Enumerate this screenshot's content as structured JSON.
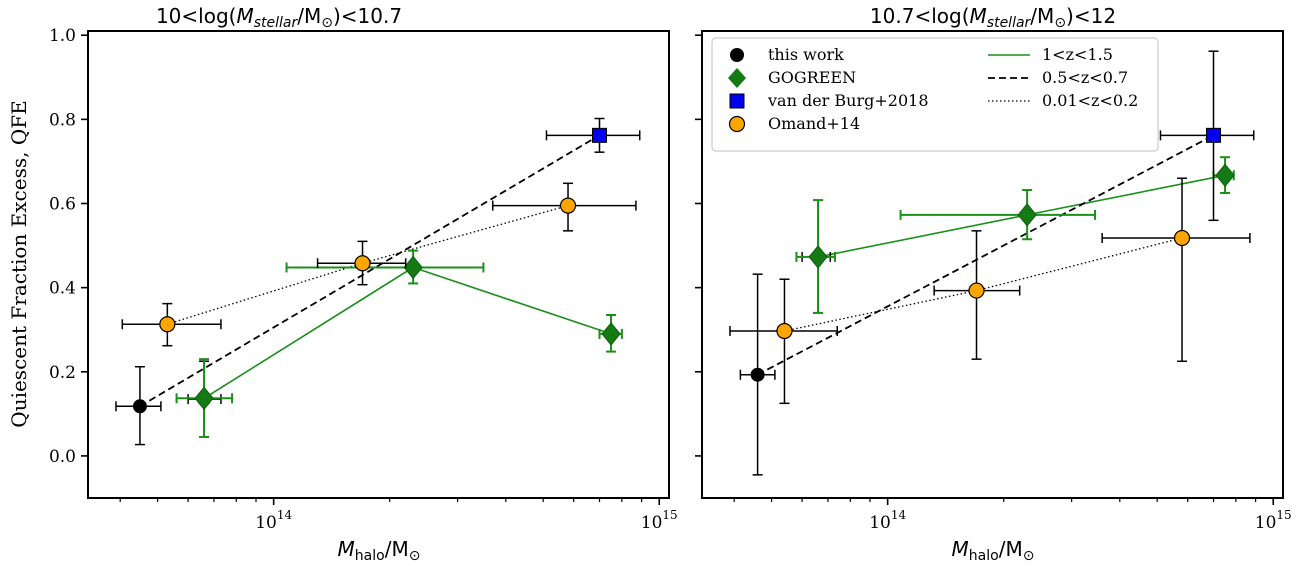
{
  "colors": {
    "this_work": "#000000",
    "gogreen": "#147a14",
    "vdb": "#0000ee",
    "omand": "#ffa500",
    "gogreen_line": "#1a8f1a"
  },
  "chart_data": [
    {
      "type": "scatter",
      "title_pre": "10<log(",
      "title_post": ")<10.7",
      "xlabel": "",
      "ylabel": "Quiescent Fraction Excess, QFE",
      "xscale": "log",
      "xlim": [
        33000000000000.0,
        1060000000000000.0
      ],
      "ylim": [
        -0.1,
        1.01
      ],
      "yticks": [
        "0.0",
        "0.2",
        "0.4",
        "0.6",
        "0.8",
        "1.0"
      ],
      "xticks": [
        {
          "base": "10",
          "exp": "14",
          "value": 100000000000000.0
        },
        {
          "base": "10",
          "exp": "15",
          "value": 1000000000000000.0
        }
      ],
      "series": [
        {
          "key": "this_work",
          "points": [
            {
              "x": 45000000000000.0,
              "y": 0.118,
              "xlo": 39000000000000.0,
              "xhi": 51000000000000.0,
              "ylo": 0.027,
              "yhi": 0.212
            },
            {
              "x": 66000000000000.0,
              "y": 0.135,
              "xlo": 60000000000000.0,
              "xhi": 73000000000000.0,
              "ylo": 0.045,
              "yhi": 0.225
            }
          ]
        },
        {
          "key": "gogreen",
          "points": [
            {
              "x": 66000000000000.0,
              "y": 0.137,
              "xlo": 56000000000000.0,
              "xhi": 78000000000000.0,
              "ylo": 0.045,
              "yhi": 0.23
            },
            {
              "x": 230000000000000.0,
              "y": 0.448,
              "xlo": 108000000000000.0,
              "xhi": 350000000000000.0,
              "ylo": 0.41,
              "yhi": 0.488
            },
            {
              "x": 750000000000000.0,
              "y": 0.29,
              "xlo": 700000000000000.0,
              "xhi": 800000000000000.0,
              "ylo": 0.248,
              "yhi": 0.335
            }
          ]
        },
        {
          "key": "vdb",
          "points": [
            {
              "x": 700000000000000.0,
              "y": 0.762,
              "xlo": 510000000000000.0,
              "xhi": 890000000000000.0,
              "ylo": 0.722,
              "yhi": 0.802
            }
          ]
        },
        {
          "key": "omand",
          "points": [
            {
              "x": 53000000000000.0,
              "y": 0.313,
              "xlo": 40500000000000.0,
              "xhi": 73000000000000.0,
              "ylo": 0.262,
              "yhi": 0.362
            },
            {
              "x": 170000000000000.0,
              "y": 0.458,
              "xlo": 130000000000000.0,
              "xhi": 220000000000000.0,
              "ylo": 0.407,
              "yhi": 0.51
            },
            {
              "x": 580000000000000.0,
              "y": 0.595,
              "xlo": 370000000000000.0,
              "xhi": 870000000000000.0,
              "ylo": 0.535,
              "yhi": 0.648
            }
          ]
        }
      ],
      "lines": [
        {
          "key": "line_hiz",
          "style": "solid",
          "color": "#1a8f1a",
          "points": [
            [
              66000000000000.0,
              0.137
            ],
            [
              230000000000000.0,
              0.448
            ],
            [
              750000000000000.0,
              0.29
            ]
          ]
        },
        {
          "key": "line_midz",
          "style": "dashed",
          "color": "#000000",
          "points": [
            [
              45000000000000.0,
              0.118
            ],
            [
              700000000000000.0,
              0.762
            ]
          ]
        },
        {
          "key": "line_lowz",
          "style": "dotted",
          "color": "#000000",
          "points": [
            [
              53000000000000.0,
              0.313
            ],
            [
              170000000000000.0,
              0.458
            ],
            [
              580000000000000.0,
              0.595
            ]
          ]
        }
      ]
    },
    {
      "type": "scatter",
      "title_pre": "10.7<log(",
      "title_post": ")<12",
      "xlabel": "",
      "ylabel": "",
      "xscale": "log",
      "xlim": [
        33000000000000.0,
        1060000000000000.0
      ],
      "ylim": [
        -0.1,
        1.01
      ],
      "yticks": [],
      "xticks": [
        {
          "base": "10",
          "exp": "14",
          "value": 100000000000000.0
        },
        {
          "base": "10",
          "exp": "15",
          "value": 1000000000000000.0
        }
      ],
      "series": [
        {
          "key": "this_work",
          "points": [
            {
              "x": 46000000000000.0,
              "y": 0.193,
              "xlo": 41500000000000.0,
              "xhi": 51000000000000.0,
              "ylo": -0.045,
              "yhi": 0.432
            },
            {
              "x": 66000000000000.0,
              "y": 0.473,
              "xlo": 60000000000000.0,
              "xhi": 71000000000000.0,
              "ylo": 0.34,
              "yhi": 0.608
            }
          ]
        },
        {
          "key": "gogreen",
          "points": [
            {
              "x": 66000000000000.0,
              "y": 0.473,
              "xlo": 58000000000000.0,
              "xhi": 73000000000000.0,
              "ylo": 0.34,
              "yhi": 0.608
            },
            {
              "x": 230000000000000.0,
              "y": 0.573,
              "xlo": 108000000000000.0,
              "xhi": 345000000000000.0,
              "ylo": 0.515,
              "yhi": 0.632
            },
            {
              "x": 750000000000000.0,
              "y": 0.667,
              "xlo": 700000000000000.0,
              "xhi": 790000000000000.0,
              "ylo": 0.625,
              "yhi": 0.71
            }
          ]
        },
        {
          "key": "vdb",
          "points": [
            {
              "x": 700000000000000.0,
              "y": 0.762,
              "xlo": 510000000000000.0,
              "xhi": 890000000000000.0,
              "ylo": 0.56,
              "yhi": 0.962
            }
          ]
        },
        {
          "key": "omand",
          "points": [
            {
              "x": 54000000000000.0,
              "y": 0.297,
              "xlo": 39000000000000.0,
              "xhi": 74000000000000.0,
              "ylo": 0.125,
              "yhi": 0.42
            },
            {
              "x": 170000000000000.0,
              "y": 0.393,
              "xlo": 132000000000000.0,
              "xhi": 220000000000000.0,
              "ylo": 0.23,
              "yhi": 0.535
            },
            {
              "x": 580000000000000.0,
              "y": 0.518,
              "xlo": 360000000000000.0,
              "xhi": 870000000000000.0,
              "ylo": 0.225,
              "yhi": 0.66
            }
          ]
        }
      ],
      "lines": [
        {
          "key": "line_hiz",
          "style": "solid",
          "color": "#1a8f1a",
          "points": [
            [
              66000000000000.0,
              0.473
            ],
            [
              230000000000000.0,
              0.573
            ],
            [
              750000000000000.0,
              0.667
            ]
          ]
        },
        {
          "key": "line_midz",
          "style": "dashed",
          "color": "#000000",
          "points": [
            [
              46000000000000.0,
              0.193
            ],
            [
              700000000000000.0,
              0.762
            ]
          ]
        },
        {
          "key": "line_lowz",
          "style": "dotted",
          "color": "#000000",
          "points": [
            [
              54000000000000.0,
              0.297
            ],
            [
              170000000000000.0,
              0.393
            ],
            [
              580000000000000.0,
              0.518
            ]
          ]
        }
      ]
    }
  ],
  "legend": {
    "placement": "top-left of right panel",
    "markers": [
      {
        "key": "this_work",
        "label": "this work",
        "shape": "circle"
      },
      {
        "key": "gogreen",
        "label": "GOGREEN",
        "shape": "diamond"
      },
      {
        "key": "vdb",
        "label": "van der Burg+2018",
        "shape": "square"
      },
      {
        "key": "omand",
        "label": "Omand+14",
        "shape": "circle"
      }
    ],
    "lines": [
      {
        "key": "line_hiz",
        "label": "1<z<1.5",
        "style": "solid",
        "color": "#1a8f1a"
      },
      {
        "key": "line_midz",
        "label": "0.5<z<0.7",
        "style": "dashed",
        "color": "#000000"
      },
      {
        "key": "line_lowz",
        "label": "0.01<z<0.2",
        "style": "dotted",
        "color": "#000000"
      }
    ]
  },
  "math": {
    "m": "M",
    "stellar": "stellar",
    "halo": "halo",
    "msun_m": "M",
    "sun": "⊙",
    "slash": "/"
  }
}
